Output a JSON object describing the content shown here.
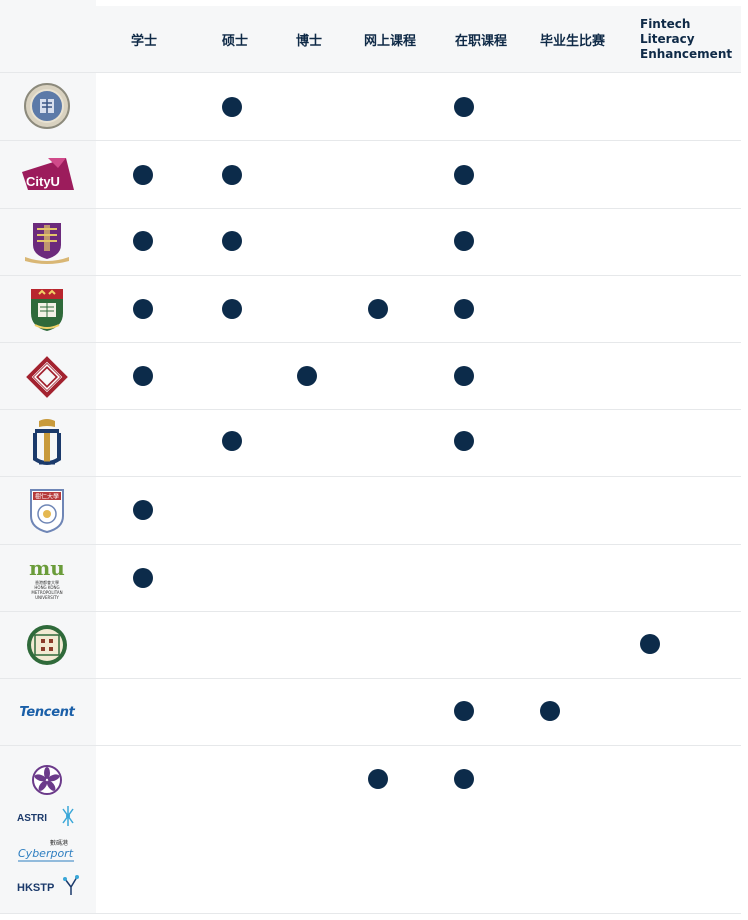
{
  "columns": [
    {
      "label": "学士"
    },
    {
      "label": "硕士"
    },
    {
      "label": "博士"
    },
    {
      "label": "网上课程"
    },
    {
      "label": "在职课程"
    },
    {
      "label": "毕业生比赛"
    },
    {
      "label_lines": [
        "Fintech",
        "Literacy",
        "Enhancement"
      ]
    }
  ],
  "rows": [
    {
      "logo": "cuhk-old-seal-logo",
      "marks": [
        false,
        true,
        false,
        false,
        true,
        false,
        false
      ]
    },
    {
      "logo": "cityu-logo",
      "logo_text": "CityU",
      "marks": [
        true,
        true,
        false,
        false,
        true,
        false,
        false
      ]
    },
    {
      "logo": "cuhk-crest-logo",
      "marks": [
        true,
        true,
        false,
        false,
        true,
        false,
        false
      ]
    },
    {
      "logo": "hku-crest-logo",
      "marks": [
        true,
        true,
        false,
        true,
        true,
        false,
        false
      ]
    },
    {
      "logo": "polyu-logo",
      "marks": [
        true,
        false,
        true,
        false,
        true,
        false,
        false
      ]
    },
    {
      "logo": "hkust-logo",
      "marks": [
        false,
        true,
        false,
        false,
        true,
        false,
        false
      ]
    },
    {
      "logo": "shue-yan-logo",
      "logo_text": "樹仁大學",
      "marks": [
        true,
        false,
        false,
        false,
        false,
        false,
        false
      ]
    },
    {
      "logo": "hkmu-logo",
      "logo_text": "mu",
      "logo_subtext": [
        "香港都會大學",
        "HONG KONG",
        "METROPOLITAN",
        "UNIVERSITY"
      ],
      "marks": [
        true,
        false,
        false,
        false,
        false,
        false,
        false
      ]
    },
    {
      "logo": "school-seal-logo",
      "marks": [
        false,
        false,
        false,
        false,
        false,
        false,
        true
      ]
    },
    {
      "logo": "tencent-logo",
      "logo_text": "Tencent",
      "marks": [
        false,
        false,
        false,
        false,
        true,
        true,
        false
      ]
    },
    {
      "logo": "gov-bauhinia-astri-cyberport-hkstp-logos",
      "logo_texts": [
        "ASTRI",
        "數碼港",
        "Cyberport",
        "HKSTP"
      ],
      "marks": [
        false,
        false,
        false,
        true,
        true,
        false,
        false
      ]
    }
  ],
  "colors": {
    "dot": "#0c2b4a",
    "header_text": "#0f2a47",
    "panel_bg": "#f6f7f8",
    "divider": "#e6e8ea"
  }
}
